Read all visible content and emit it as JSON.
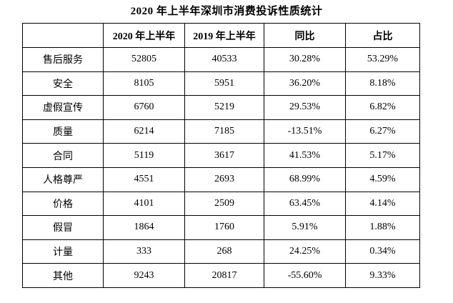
{
  "title": "2020 年上半年深圳市消费投诉性质统计",
  "table": {
    "columns": {
      "label": "",
      "h2020": "2020 年上半年",
      "h2019": "2019 年上半年",
      "yoy": "同比",
      "share": "占比"
    },
    "rows": [
      {
        "label": "售后服务",
        "v2020": "52805",
        "v2019": "40533",
        "yoy": "30.28%",
        "share": "53.29%"
      },
      {
        "label": "安全",
        "v2020": "8105",
        "v2019": "5951",
        "yoy": "36.20%",
        "share": "8.18%"
      },
      {
        "label": "虚假宣传",
        "v2020": "6760",
        "v2019": "5219",
        "yoy": "29.53%",
        "share": "6.82%"
      },
      {
        "label": "质量",
        "v2020": "6214",
        "v2019": "7185",
        "yoy": "-13.51%",
        "share": "6.27%"
      },
      {
        "label": "合同",
        "v2020": "5119",
        "v2019": "3617",
        "yoy": "41.53%",
        "share": "5.17%"
      },
      {
        "label": "人格尊严",
        "v2020": "4551",
        "v2019": "2693",
        "yoy": "68.99%",
        "share": "4.59%"
      },
      {
        "label": "价格",
        "v2020": "4101",
        "v2019": "2509",
        "yoy": "63.45%",
        "share": "4.14%"
      },
      {
        "label": "假冒",
        "v2020": "1864",
        "v2019": "1760",
        "yoy": "5.91%",
        "share": "1.88%"
      },
      {
        "label": "计量",
        "v2020": "333",
        "v2019": "268",
        "yoy": "24.25%",
        "share": "0.34%"
      },
      {
        "label": "其他",
        "v2020": "9243",
        "v2019": "20817",
        "yoy": "-55.60%",
        "share": "9.33%"
      }
    ]
  }
}
